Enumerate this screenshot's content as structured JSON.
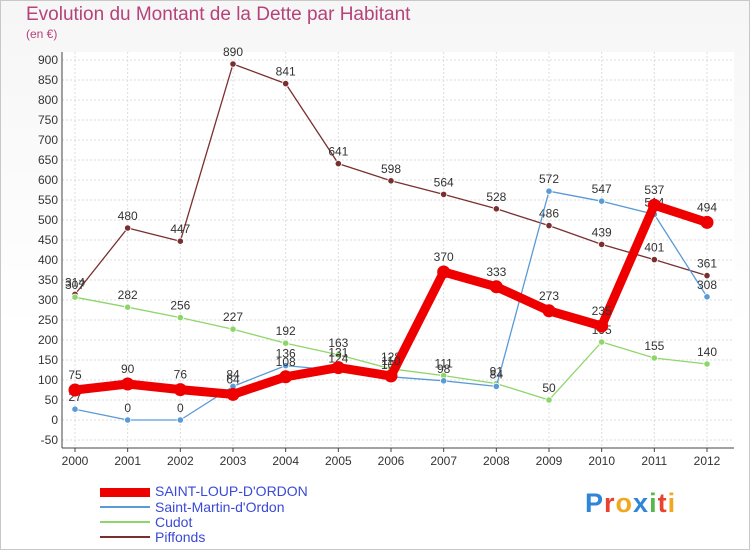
{
  "chart_data": {
    "type": "line",
    "title": "Evolution du Montant de la Dette par Habitant",
    "subtitle": "(en €)",
    "x": [
      "2000",
      "2001",
      "2002",
      "2003",
      "2004",
      "2005",
      "2006",
      "2007",
      "2008",
      "2009",
      "2010",
      "2011",
      "2012"
    ],
    "ylim": [
      -50,
      900
    ],
    "yticks": [
      -50,
      0,
      50,
      100,
      150,
      200,
      250,
      300,
      350,
      400,
      450,
      500,
      550,
      600,
      650,
      700,
      750,
      800,
      850,
      900
    ],
    "series": [
      {
        "name": "Piffonds",
        "color": "#7a2f2f",
        "values": [
          314,
          480,
          447,
          890,
          841,
          641,
          598,
          564,
          528,
          486,
          439,
          401,
          361
        ]
      },
      {
        "name": "Cudot",
        "color": "#8fd66a",
        "values": [
          307,
          282,
          256,
          227,
          192,
          163,
          128,
          111,
          91,
          50,
          195,
          155,
          140
        ]
      },
      {
        "name": "Saint-Martin-d'Ordon",
        "color": "#5a9ad6",
        "values": [
          27,
          0,
          0,
          84,
          136,
          124,
          108,
          98,
          84,
          572,
          547,
          514,
          308
        ]
      },
      {
        "name": "SAINT-LOUP-D'ORDON",
        "color": "#ee0000",
        "values": [
          75,
          90,
          76,
          64,
          108,
          131,
          110,
          370,
          333,
          273,
          235,
          537,
          494
        ]
      }
    ]
  },
  "legend": [
    {
      "label": "SAINT-LOUP-D'ORDON",
      "color": "#ee0000"
    },
    {
      "label": "Saint-Martin-d'Ordon",
      "color": "#5a9ad6"
    },
    {
      "label": "Cudot",
      "color": "#8fd66a"
    },
    {
      "label": "Piffonds",
      "color": "#7a2f2f"
    }
  ],
  "logo": {
    "letters": [
      "P",
      "r",
      "o",
      "x",
      "i",
      "t",
      "i"
    ],
    "colors": [
      "#2e86d9",
      "#e8432f",
      "#f0a81f",
      "#2e86d9",
      "#55b847",
      "#e8432f",
      "#f0a81f"
    ]
  }
}
